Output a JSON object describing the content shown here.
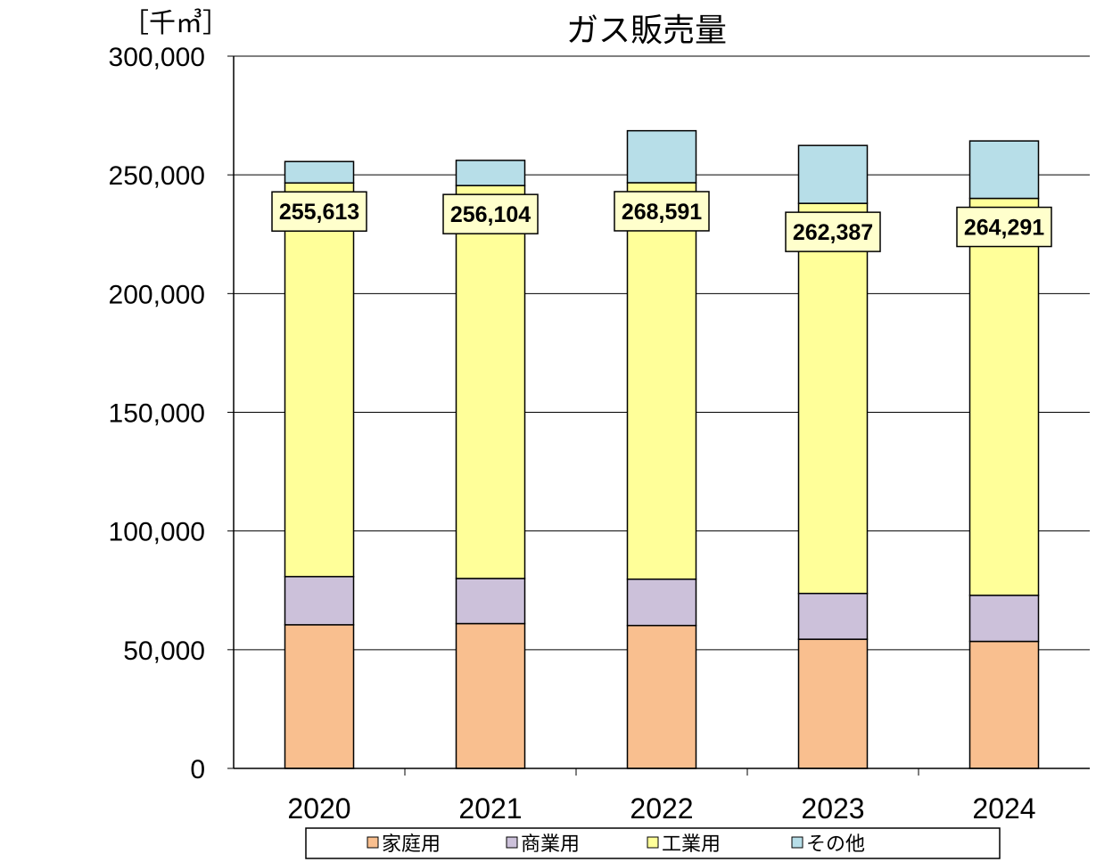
{
  "chart_data": {
    "type": "bar",
    "stacked": true,
    "title": "ガス販売量",
    "unit_label": "［千㎥］",
    "ylim": [
      0,
      300000
    ],
    "y_ticks": [
      0,
      50000,
      100000,
      150000,
      200000,
      250000,
      300000
    ],
    "y_tick_labels": [
      "0",
      "50,000",
      "100,000",
      "150,000",
      "200,000",
      "250,000",
      "300,000"
    ],
    "grid": true,
    "legend_position": "bottom",
    "categories": [
      "2020",
      "2021",
      "2022",
      "2023",
      "2024"
    ],
    "series": [
      {
        "name": "家庭用",
        "color": "#F9BF8F",
        "values": [
          60500,
          61000,
          60200,
          54400,
          53500
        ]
      },
      {
        "name": "商業用",
        "color": "#CCC1DA",
        "values": [
          20300,
          19000,
          19500,
          19300,
          19400
        ]
      },
      {
        "name": "工業用",
        "color": "#FFFF99",
        "values": [
          165800,
          165500,
          167000,
          164300,
          167200
        ]
      },
      {
        "name": "その他",
        "color": "#B7DEE8",
        "values": [
          9013,
          10604,
          21891,
          24387,
          24191
        ]
      }
    ],
    "totals": [
      255613,
      256104,
      268591,
      262387,
      264291
    ],
    "total_labels": [
      "255,613",
      "256,104",
      "268,591",
      "262,387",
      "264,291"
    ]
  }
}
